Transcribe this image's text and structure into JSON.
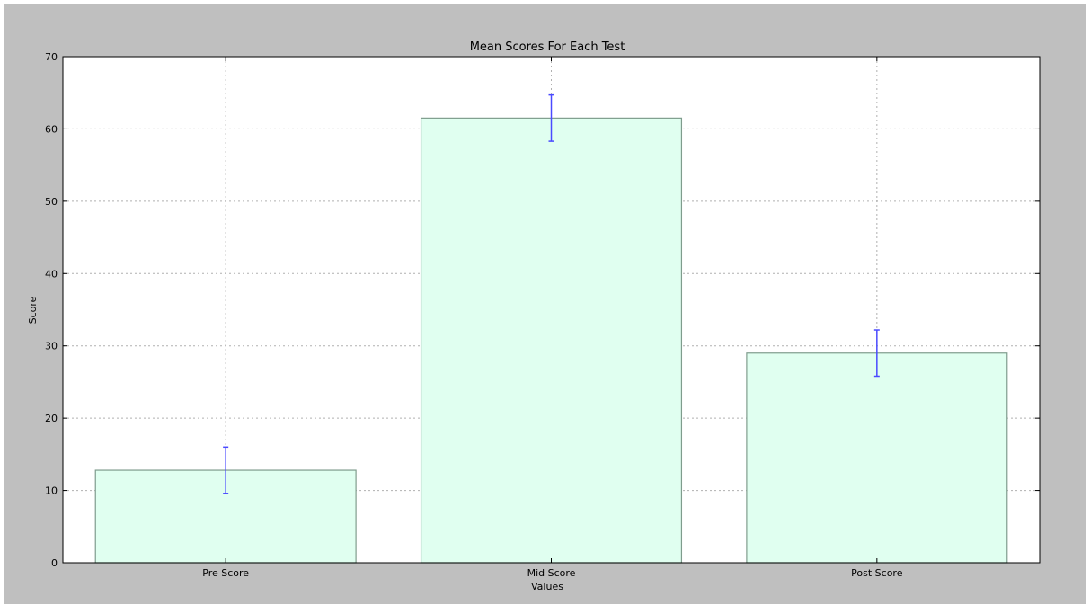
{
  "chart_data": {
    "type": "bar",
    "title": "Mean Scores For Each Test",
    "xlabel": "Values",
    "ylabel": "Score",
    "categories": [
      "Pre Score",
      "Mid Score",
      "Post Score"
    ],
    "values": [
      12.8,
      61.5,
      29.0
    ],
    "error": [
      3.2,
      3.2,
      3.2
    ],
    "ylim": [
      0,
      70
    ],
    "yticks": [
      "0",
      "10",
      "20",
      "30",
      "40",
      "50",
      "60",
      "70"
    ],
    "grid": true,
    "bar_color": "#e0fff0",
    "bar_edge_color": "#7f9c8d",
    "error_color": "#4a4aff",
    "grid_color": "#b0b0b0",
    "background_color": "#bfbfbf"
  }
}
